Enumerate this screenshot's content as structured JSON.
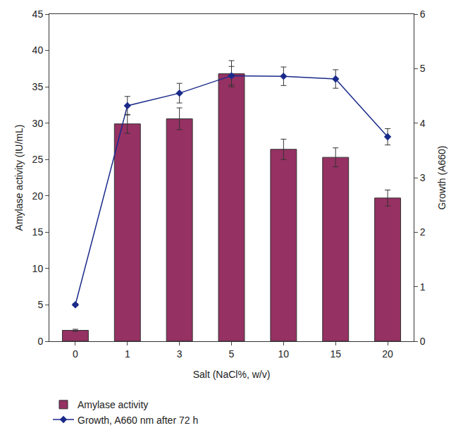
{
  "chart_data": {
    "type": "bar",
    "x_label": "Salt (NaCl%, w/v)",
    "y_label": "Amylase activity (IU/mL)",
    "y2_label": "Growth (A660)",
    "categories": [
      "0",
      "1",
      "3",
      "5",
      "10",
      "15",
      "20"
    ],
    "series": [
      {
        "name": "Amylase activity",
        "type": "bar",
        "color": "#953163",
        "values": [
          1.5,
          29.9,
          30.6,
          36.8,
          26.4,
          25.3,
          19.7
        ],
        "errors": [
          0.15,
          1.3,
          1.5,
          1.8,
          1.4,
          1.3,
          1.1
        ]
      },
      {
        "name": "Growth, A660 nm after 72 h",
        "type": "line",
        "axis": "y2",
        "color": "#1a2a8a",
        "marker": "diamond",
        "values": [
          0.67,
          4.32,
          4.55,
          4.87,
          4.86,
          4.81,
          3.75
        ],
        "errors": [
          0.02,
          0.17,
          0.18,
          0.17,
          0.17,
          0.17,
          0.15
        ]
      }
    ],
    "ylim": [
      0,
      45
    ],
    "yticks": [
      0,
      5,
      10,
      15,
      20,
      25,
      30,
      35,
      40,
      45
    ],
    "y2lim": [
      0,
      6
    ],
    "y2ticks": [
      0,
      1,
      2,
      3,
      4,
      5,
      6
    ],
    "legend": "bottom",
    "grid": false
  }
}
